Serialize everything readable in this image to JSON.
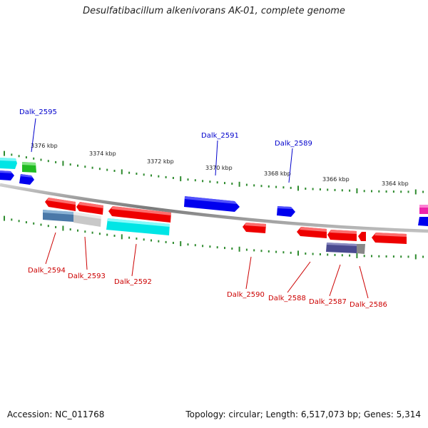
{
  "title": "Desulfatibacillum alkenivorans AK-01, complete genome",
  "footer": {
    "accession": "Accession: NC_011768",
    "summary": "Topology: circular; Length: 6,517,073 bp; Genes: 5,314"
  },
  "ticks": [
    "3376 kbp",
    "3374 kbp",
    "3372 kbp",
    "3370 kbp",
    "3368 kbp",
    "3366 kbp",
    "3364 kbp"
  ],
  "gene_labels_top": [
    "Dalk_2595",
    "Dalk_2591",
    "Dalk_2589"
  ],
  "gene_labels_bottom": [
    "Dalk_2594",
    "Dalk_2593",
    "Dalk_2592",
    "Dalk_2590",
    "Dalk_2588",
    "Dalk_2587",
    "Dalk_2586"
  ],
  "colors": {
    "backbone": "#808080",
    "tick": "#2e8b2e",
    "top_label": "#0000cc",
    "bottom_label": "#cc0000",
    "gene_red": "#ee0000",
    "gene_blue": "#0000ee",
    "gene_cyan": "#00e5e5",
    "gene_green": "#22bb22",
    "gene_steel": "#4a78a8",
    "gene_gray": "#c8c8c8",
    "gene_navy": "#4a4a90",
    "gene_magenta": "#ee22aa"
  }
}
